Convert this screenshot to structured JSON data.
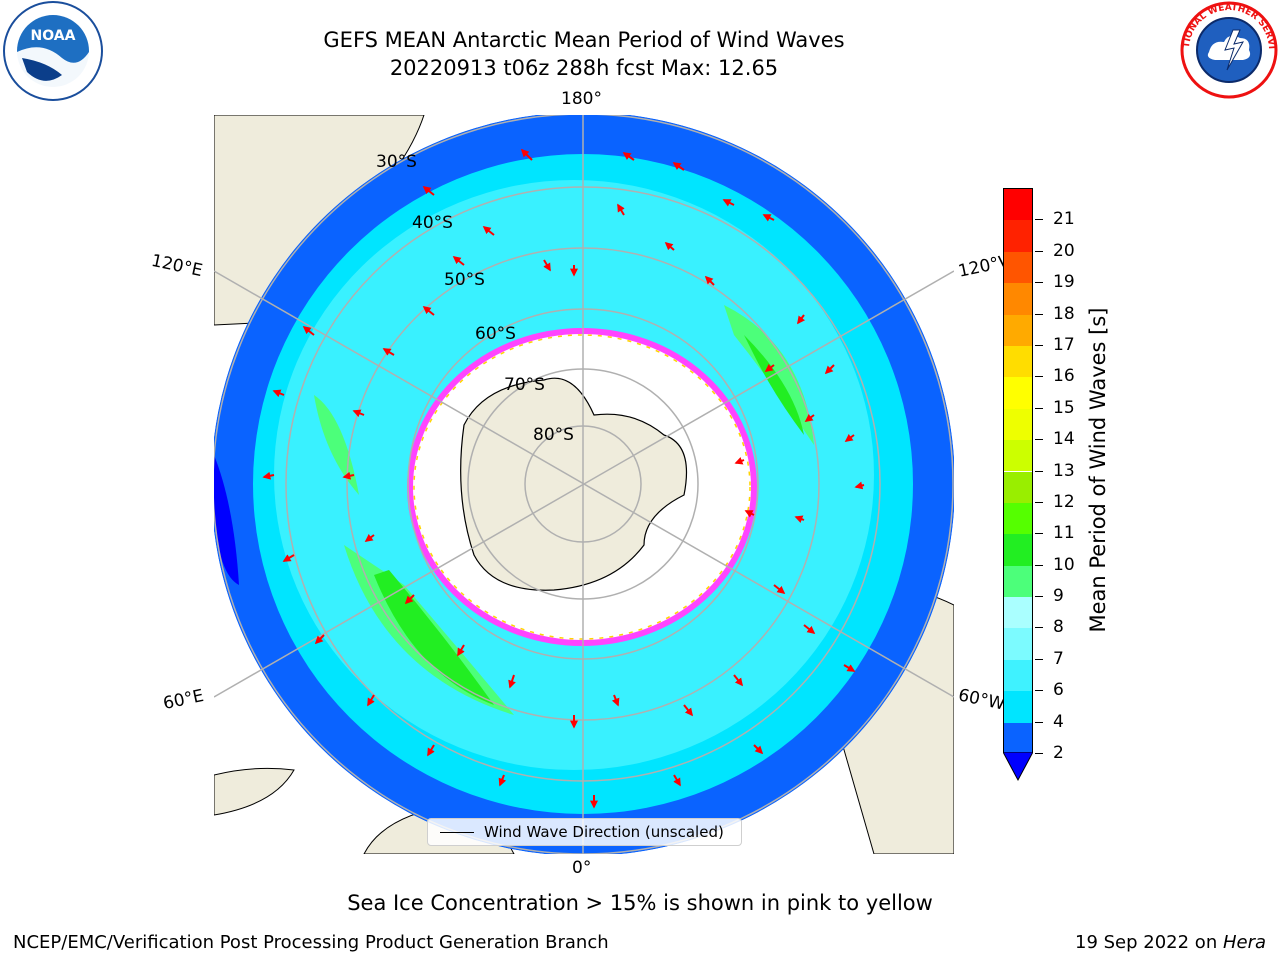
{
  "title": {
    "line1": "GEFS MEAN Antarctic Mean Period of Wind Waves",
    "line2": "20220913 t06z 288h fcst   Max: 12.65"
  },
  "logos": {
    "left": "NOAA",
    "right": "NATIONAL WEATHER SERVICE"
  },
  "map": {
    "projection": "south-polar-stereographic",
    "lon_labels": {
      "top": "180°",
      "bottom": "0°",
      "left_upper": "120°E",
      "left_lower": "60°E",
      "right_upper": "120°W",
      "right_lower": "60°W"
    },
    "lat_labels": [
      "30°S",
      "40°S",
      "50°S",
      "60°S",
      "70°S",
      "80°S"
    ],
    "land_color": "#efecdc",
    "ice_colors": [
      "#ff44ff",
      "#ffd400"
    ]
  },
  "colorbar": {
    "label": "Mean Period of Wind Waves [s]",
    "ticks": [
      "2",
      "4",
      "6",
      "7",
      "8",
      "9",
      "10",
      "11",
      "12",
      "13",
      "14",
      "15",
      "16",
      "17",
      "18",
      "19",
      "20",
      "21"
    ],
    "colors": [
      "#0a63ff",
      "#00e5ff",
      "#3ff2ff",
      "#7cfbff",
      "#aaffff",
      "#4cff7a",
      "#22ee22",
      "#55ff00",
      "#99ee00",
      "#ccff00",
      "#eeff00",
      "#ffff00",
      "#ffdd00",
      "#ffaa00",
      "#ff8800",
      "#ff5500",
      "#ff2200",
      "#ff0000"
    ],
    "under_color": "#0000ff"
  },
  "legend": {
    "label": "Wind Wave Direction (unscaled)"
  },
  "note": "Sea Ice Concentration > 15% is shown in pink to yellow",
  "footer": {
    "left": "NCEP/EMC/Verification Post Processing Product Generation Branch",
    "date": "19 Sep 2022 on ",
    "host": "Hera"
  }
}
